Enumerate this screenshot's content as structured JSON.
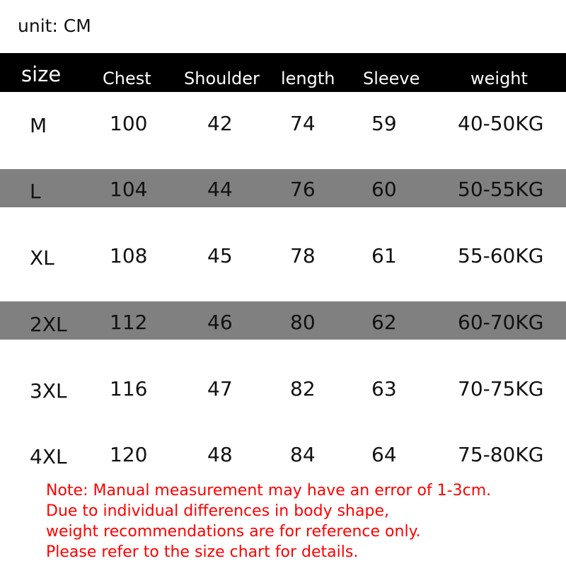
{
  "unit_label": "unit: CM",
  "header": [
    "size",
    "Chest",
    "Shoulder",
    "length",
    "Sleeve",
    "weight"
  ],
  "rows": [
    [
      "M",
      "100",
      "42",
      "74",
      "59",
      "40-50KG"
    ],
    [
      "L",
      "104",
      "44",
      "76",
      "60",
      "50-55KG"
    ],
    [
      "XL",
      "108",
      "45",
      "78",
      "61",
      "55-60KG"
    ],
    [
      "2XL",
      "112",
      "46",
      "80",
      "62",
      "60-70KG"
    ],
    [
      "3XL",
      "116",
      "47",
      "82",
      "63",
      "70-75KG"
    ],
    [
      "4XL",
      "120",
      "48",
      "84",
      "64",
      "75-80KG"
    ]
  ],
  "colors": {
    "header_bg": "#000000",
    "band_bg": "#808080",
    "note": "#ff0000"
  },
  "note_lines": [
    "Note: Manual measurement may have an error of 1-3cm.",
    "Due to individual differences in body shape,",
    "weight recommendations are for reference only.",
    "Please refer to the size chart for details."
  ]
}
